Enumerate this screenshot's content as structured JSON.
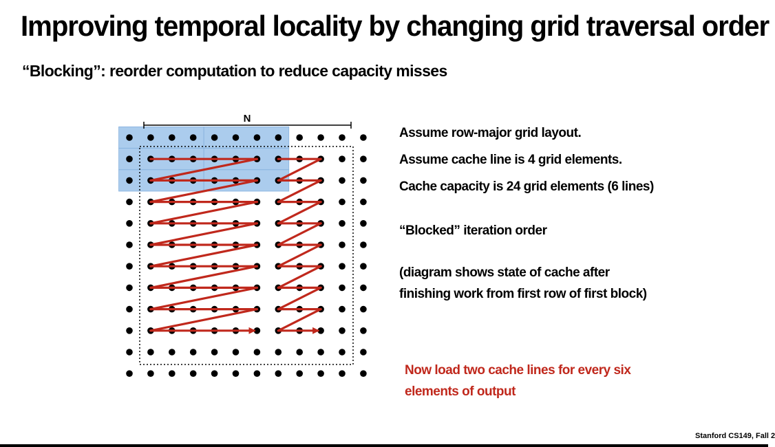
{
  "slide": {
    "title": "Improving temporal locality by changing grid traversal order",
    "subtitle": "“Blocking”: reorder computation to reduce capacity misses",
    "footer": "Stanford CS149, Fall 2"
  },
  "diagram": {
    "n_label": "N",
    "grid_rows": 12,
    "grid_cols": 12,
    "cached_rows": 3,
    "cached_cols": 8,
    "block_rows": 9,
    "block_cols_per_block": [
      6,
      3
    ],
    "colors": {
      "cache_highlight": "#9cc3ea",
      "traversal_arrow": "#c0281c",
      "dot": "#000000"
    }
  },
  "notes": {
    "line1": "Assume row-major grid layout.",
    "line2": "Assume cache line is 4 grid elements.",
    "line3": "Cache capacity is 24 grid elements (6 lines)",
    "line4": "“Blocked” iteration order",
    "line5": "(diagram shows state of cache after",
    "line6": "finishing work from first row of first block)",
    "highlight_line1": "Now load two cache lines for every six",
    "highlight_line2": "elements of output",
    "highlight_color": "#c0281c"
  }
}
